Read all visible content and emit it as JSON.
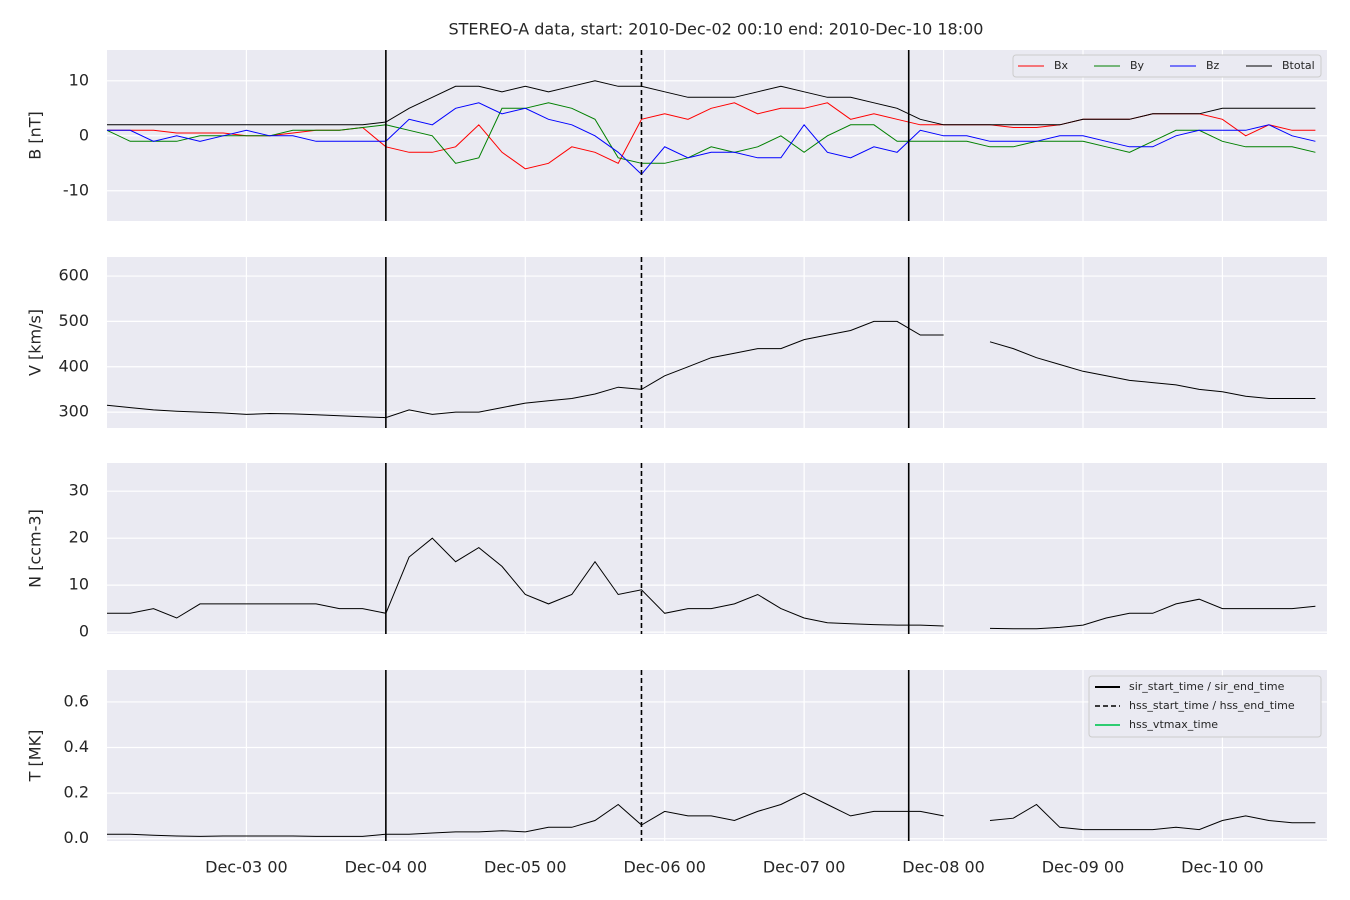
{
  "title": "STEREO-A data, start: 2010-Dec-02 00:10  end: 2010-Dec-10 18:00",
  "xlim": [
    "Dec-02 00",
    "Dec-10 18"
  ],
  "xticks": [
    "Dec-03 00",
    "Dec-04 00",
    "Dec-05 00",
    "Dec-06 00",
    "Dec-07 00",
    "Dec-08 00",
    "Dec-09 00",
    "Dec-10 00"
  ],
  "x": [
    "Dec-02 00",
    "Dec-02 04",
    "Dec-02 08",
    "Dec-02 12",
    "Dec-02 16",
    "Dec-02 20",
    "Dec-03 00",
    "Dec-03 04",
    "Dec-03 08",
    "Dec-03 12",
    "Dec-03 16",
    "Dec-03 20",
    "Dec-04 00",
    "Dec-04 04",
    "Dec-04 08",
    "Dec-04 12",
    "Dec-04 16",
    "Dec-04 20",
    "Dec-05 00",
    "Dec-05 04",
    "Dec-05 08",
    "Dec-05 12",
    "Dec-05 16",
    "Dec-05 20",
    "Dec-06 00",
    "Dec-06 04",
    "Dec-06 08",
    "Dec-06 12",
    "Dec-06 16",
    "Dec-06 20",
    "Dec-07 00",
    "Dec-07 04",
    "Dec-07 08",
    "Dec-07 12",
    "Dec-07 16",
    "Dec-07 20",
    "Dec-08 00",
    "Dec-08 04",
    "Dec-08 08",
    "Dec-08 12",
    "Dec-08 16",
    "Dec-08 20",
    "Dec-09 00",
    "Dec-09 04",
    "Dec-09 08",
    "Dec-09 12",
    "Dec-09 16",
    "Dec-09 20",
    "Dec-10 00",
    "Dec-10 04",
    "Dec-10 08",
    "Dec-10 12",
    "Dec-10 16"
  ],
  "events": [
    {
      "name": "sir_start_time / sir_end_time",
      "color": "#000000",
      "style": "solid",
      "x": [
        "Dec-04 00",
        "Dec-07 18"
      ]
    },
    {
      "name": "hss_start_time / hss_end_time",
      "color": "#000000",
      "style": "dashed",
      "x": [
        "Dec-05 20"
      ]
    },
    {
      "name": "hss_vtmax_time",
      "color": "#2ecc71",
      "style": "solid",
      "x": []
    }
  ],
  "chart_data": [
    {
      "type": "line",
      "ylabel": "B [nT]",
      "ylim": [
        -15.5,
        15.6
      ],
      "yticks": [
        -10,
        0,
        10
      ],
      "grid": true,
      "legend": "upper right",
      "series": [
        {
          "name": "Bx",
          "color": "#ff0000",
          "values": [
            1,
            1,
            1,
            0.5,
            0.5,
            0.5,
            0,
            0,
            0.5,
            1,
            1,
            1.5,
            -2,
            -3,
            -3,
            -2,
            2,
            -3,
            -6,
            -5,
            -2,
            -3,
            -5,
            3,
            4,
            3,
            5,
            6,
            4,
            5,
            5,
            6,
            3,
            4,
            3,
            2,
            2,
            2,
            2,
            1.5,
            1.5,
            2,
            3,
            3,
            3,
            4,
            4,
            4,
            3,
            0,
            2,
            1,
            1
          ]
        },
        {
          "name": "By",
          "color": "#008000",
          "values": [
            1,
            -1,
            -1,
            -1,
            0,
            0,
            0,
            0,
            1,
            1,
            1,
            1.5,
            2,
            1,
            0,
            -5,
            -4,
            5,
            5,
            6,
            5,
            3,
            -4,
            -5,
            -5,
            -4,
            -2,
            -3,
            -2,
            0,
            -3,
            0,
            2,
            2,
            -1,
            -1,
            -1,
            -1,
            -2,
            -2,
            -1,
            -1,
            -1,
            -2,
            -3,
            -1,
            1,
            1,
            -1,
            -2,
            -2,
            -2,
            -3
          ]
        },
        {
          "name": "Bz",
          "color": "#0000ff",
          "values": [
            1,
            1,
            -1,
            0,
            -1,
            0,
            1,
            0,
            0,
            -1,
            -1,
            -1,
            -1,
            3,
            2,
            5,
            6,
            4,
            5,
            3,
            2,
            0,
            -3,
            -7,
            -2,
            -4,
            -3,
            -3,
            -4,
            -4,
            2,
            -3,
            -4,
            -2,
            -3,
            1,
            0,
            0,
            -1,
            -1,
            -1,
            0,
            0,
            -1,
            -2,
            -2,
            0,
            1,
            1,
            1,
            2,
            0,
            -1
          ]
        },
        {
          "name": "Btotal",
          "color": "#000000",
          "values": [
            2,
            2,
            2,
            2,
            2,
            2,
            2,
            2,
            2,
            2,
            2,
            2,
            2.5,
            5,
            7,
            9,
            9,
            8,
            9,
            8,
            9,
            10,
            9,
            9,
            8,
            7,
            7,
            7,
            8,
            9,
            8,
            7,
            7,
            6,
            5,
            3,
            2,
            2,
            2,
            2,
            2,
            2,
            3,
            3,
            3,
            4,
            4,
            4,
            5,
            5,
            5,
            5,
            5
          ]
        }
      ]
    },
    {
      "type": "line",
      "ylabel": "V [km/s]",
      "ylim": [
        265,
        642
      ],
      "yticks": [
        300,
        400,
        500,
        600
      ],
      "grid": true,
      "series": [
        {
          "color": "#000000",
          "values": [
            315,
            310,
            305,
            302,
            300,
            298,
            295,
            297,
            296,
            294,
            292,
            290,
            288,
            305,
            295,
            300,
            300,
            310,
            320,
            325,
            330,
            340,
            355,
            350,
            380,
            400,
            420,
            430,
            440,
            440,
            460,
            470,
            480,
            500,
            500,
            470,
            470,
            null,
            455,
            440,
            420,
            405,
            390,
            380,
            370,
            365,
            360,
            350,
            345,
            335,
            330,
            330,
            330
          ]
        }
      ]
    },
    {
      "type": "line",
      "ylabel": "N [ccm-3]",
      "ylim": [
        -0.4,
        36
      ],
      "yticks": [
        0,
        10,
        20,
        30
      ],
      "grid": true,
      "series": [
        {
          "color": "#000000",
          "values": [
            4,
            4,
            5,
            3,
            6,
            6,
            6,
            6,
            6,
            6,
            5,
            5,
            4,
            16,
            20,
            15,
            18,
            14,
            8,
            6,
            8,
            15,
            8,
            9,
            4,
            5,
            5,
            6,
            8,
            5,
            3,
            2,
            1.8,
            1.6,
            1.5,
            1.5,
            1.3,
            null,
            0.8,
            0.7,
            0.7,
            1,
            1.5,
            3,
            4,
            4,
            6,
            7,
            5,
            5,
            5,
            5,
            5.5
          ]
        }
      ]
    },
    {
      "type": "line",
      "ylabel": "T [MK]",
      "ylim": [
        -0.01,
        0.74
      ],
      "yticks": [
        {
          "value": 0,
          "label": "0.0"
        },
        0.2,
        0.4,
        0.6
      ],
      "grid": true,
      "legend": "upper right",
      "series": [
        {
          "color": "#000000",
          "values": [
            0.02,
            0.02,
            0.015,
            0.012,
            0.01,
            0.012,
            0.012,
            0.012,
            0.012,
            0.01,
            0.01,
            0.01,
            0.02,
            0.02,
            0.025,
            0.03,
            0.03,
            0.035,
            0.03,
            0.05,
            0.05,
            0.08,
            0.15,
            0.06,
            0.12,
            0.1,
            0.1,
            0.08,
            0.12,
            0.15,
            0.2,
            0.15,
            0.1,
            0.12,
            0.12,
            0.12,
            0.1,
            null,
            0.08,
            0.09,
            0.15,
            0.05,
            0.04,
            0.04,
            0.04,
            0.04,
            0.05,
            0.04,
            0.08,
            0.1,
            0.08,
            0.07,
            0.07
          ]
        }
      ]
    }
  ]
}
